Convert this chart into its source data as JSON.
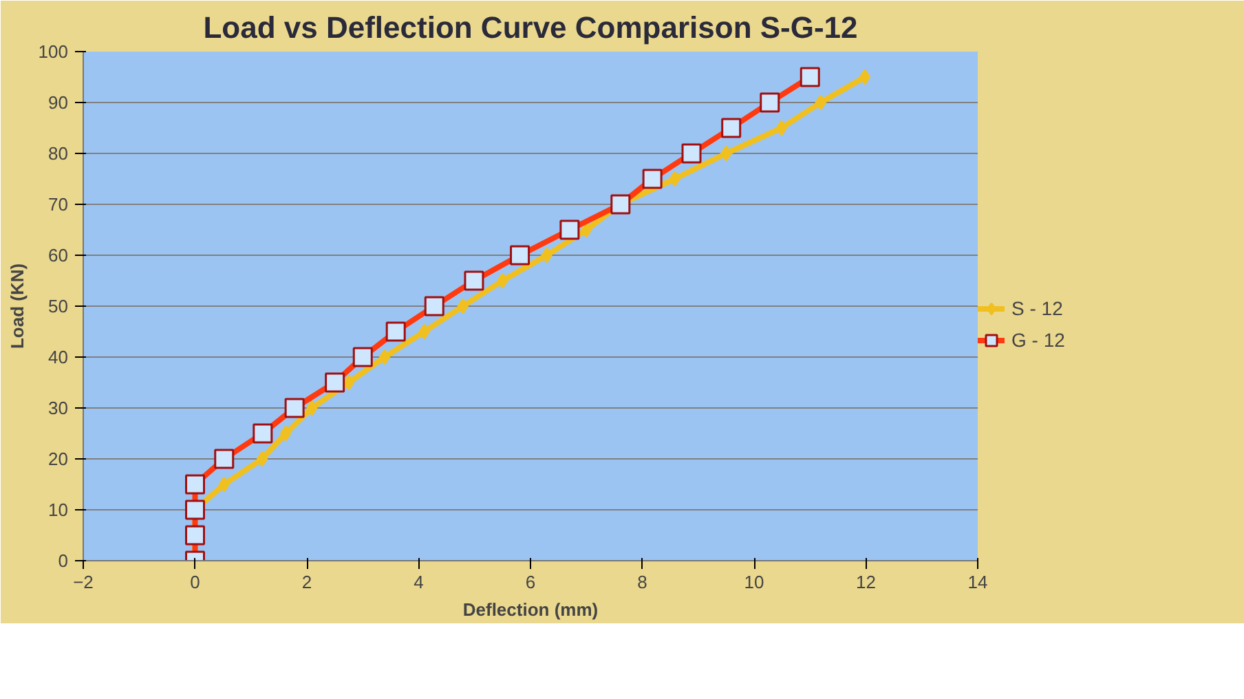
{
  "chart_data": {
    "type": "line",
    "title": "Load vs Deflection Curve Comparison S-G-12",
    "xlabel": "Deflection (mm)",
    "ylabel": "Load (KN)",
    "xlim": [
      -2,
      14
    ],
    "xticks": [
      -2,
      0,
      2,
      4,
      6,
      8,
      10,
      12,
      14
    ],
    "ylim": [
      0,
      100
    ],
    "yticks": [
      0,
      10,
      20,
      30,
      40,
      50,
      60,
      70,
      80,
      90,
      100
    ],
    "grid": "y",
    "legend": "right",
    "line_style": "solid",
    "series": [
      {
        "name": "S - 12",
        "color": "#f0c020",
        "marker": "diamond",
        "x": [
          0,
          0,
          0,
          0.52,
          1.2,
          1.62,
          2.09,
          2.75,
          3.39,
          4.1,
          4.79,
          5.5,
          6.29,
          7.0,
          7.6,
          8.58,
          9.5,
          10.49,
          11.19,
          11.98
        ],
        "values": [
          0,
          5,
          10,
          15,
          20,
          25,
          30,
          35,
          40,
          45,
          50,
          55,
          60,
          65,
          70,
          75,
          80,
          85,
          90,
          95
        ]
      },
      {
        "name": "G - 12",
        "color": "#ff3a10",
        "marker": "square",
        "x": [
          0,
          0,
          0,
          0,
          0.52,
          1.21,
          1.78,
          2.5,
          3.0,
          3.59,
          4.28,
          4.99,
          5.81,
          6.7,
          7.61,
          8.18,
          8.88,
          9.59,
          10.28,
          11.0
        ],
        "values": [
          0,
          5,
          10,
          15,
          20,
          25,
          30,
          35,
          40,
          45,
          50,
          55,
          60,
          65,
          70,
          75,
          80,
          85,
          90,
          95
        ]
      }
    ]
  }
}
